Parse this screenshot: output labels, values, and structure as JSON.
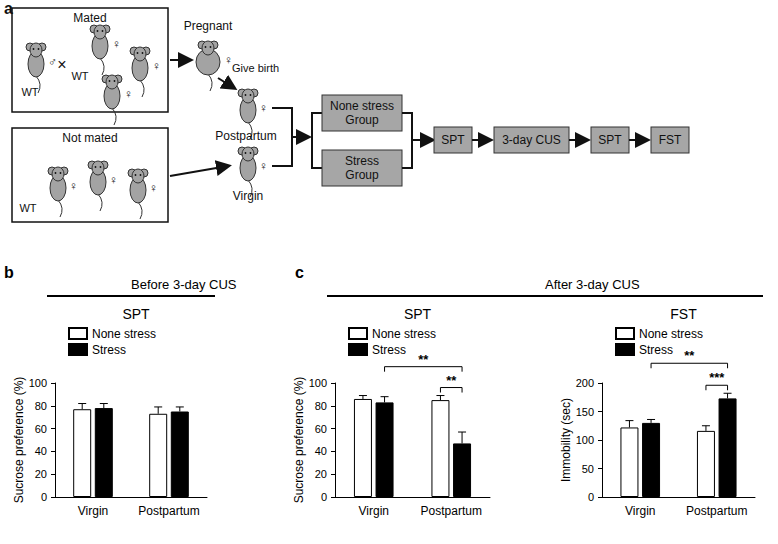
{
  "panel_a": {
    "label": "a",
    "mated_box": {
      "title": "Mated",
      "cross": "×",
      "mice": [
        {
          "sex": "♂",
          "strain": "WT"
        },
        {
          "sex": "♀",
          "strain": "WT"
        },
        {
          "sex": "♀"
        },
        {
          "sex": "♀"
        }
      ]
    },
    "not_mated_box": {
      "title": "Not mated",
      "strain": "WT",
      "mice": [
        {
          "sex": "♀"
        },
        {
          "sex": "♀"
        },
        {
          "sex": "♀"
        }
      ]
    },
    "pregnant": {
      "label": "Pregnant",
      "sex": "♀"
    },
    "give_birth": "Give birth",
    "postpartum": {
      "label": "Postpartum",
      "sex": "♀"
    },
    "virgin": {
      "label": "Virgin",
      "sex": "♀"
    },
    "groups": [
      "None stress Group",
      "Stress Group"
    ],
    "steps": [
      "SPT",
      "3-day CUS",
      "SPT",
      "FST"
    ]
  },
  "panel_labels": [
    {
      "text": "b",
      "chart": 0
    },
    {
      "text": "c",
      "chart": 1
    }
  ],
  "headers": [
    {
      "text": "Before 3-day CUS",
      "charts": [
        0
      ]
    },
    {
      "text": "After 3-day CUS",
      "charts": [
        1,
        2
      ]
    }
  ],
  "chart_data": [
    {
      "type": "bar",
      "title": "SPT",
      "y_label": "Sucrose preference (%)",
      "categories": [
        "Virgin",
        "Postpartum"
      ],
      "series": [
        {
          "name": "None stress",
          "color": "#ffffff",
          "values": [
            77,
            73
          ],
          "errors": [
            5,
            6
          ]
        },
        {
          "name": "Stress",
          "color": "#000000",
          "values": [
            78,
            75
          ],
          "errors": [
            4,
            4
          ]
        }
      ],
      "ylim": [
        0,
        100
      ],
      "yticks": [
        0,
        20,
        40,
        60,
        80,
        100
      ],
      "legend": "upper left",
      "annotations": []
    },
    {
      "type": "bar",
      "title": "SPT",
      "y_label": "Sucrose preference (%)",
      "categories": [
        "Virgin",
        "Postpartum"
      ],
      "series": [
        {
          "name": "None stress",
          "color": "#ffffff",
          "values": [
            86,
            85
          ],
          "errors": [
            3,
            4
          ]
        },
        {
          "name": "Stress",
          "color": "#000000",
          "values": [
            83,
            47
          ],
          "errors": [
            5,
            10
          ]
        }
      ],
      "ylim": [
        0,
        100
      ],
      "yticks": [
        0,
        20,
        40,
        60,
        80,
        100
      ],
      "legend": "upper left",
      "annotations": [
        {
          "text": "**",
          "from": {
            "category": 1,
            "series": 0
          },
          "to": {
            "category": 1,
            "series": 1
          }
        },
        {
          "text": "**",
          "from": {
            "category": 0,
            "series": 1
          },
          "to": {
            "category": 1,
            "series": 1
          }
        }
      ]
    },
    {
      "type": "bar",
      "title": "FST",
      "y_label": "Immobility (sec)",
      "categories": [
        "Virgin",
        "Postpartum"
      ],
      "series": [
        {
          "name": "None stress",
          "color": "#ffffff",
          "values": [
            122,
            116
          ],
          "errors": [
            12,
            9
          ]
        },
        {
          "name": "Stress",
          "color": "#000000",
          "values": [
            130,
            173
          ],
          "errors": [
            6,
            9
          ]
        }
      ],
      "ylim": [
        0,
        200
      ],
      "yticks": [
        0,
        50,
        100,
        150,
        200
      ],
      "legend": "upper left",
      "annotations": [
        {
          "text": "***",
          "from": {
            "category": 1,
            "series": 0
          },
          "to": {
            "category": 1,
            "series": 1
          }
        },
        {
          "text": "**",
          "from": {
            "category": 0,
            "series": 1
          },
          "to": {
            "category": 1,
            "series": 1
          }
        }
      ]
    }
  ]
}
